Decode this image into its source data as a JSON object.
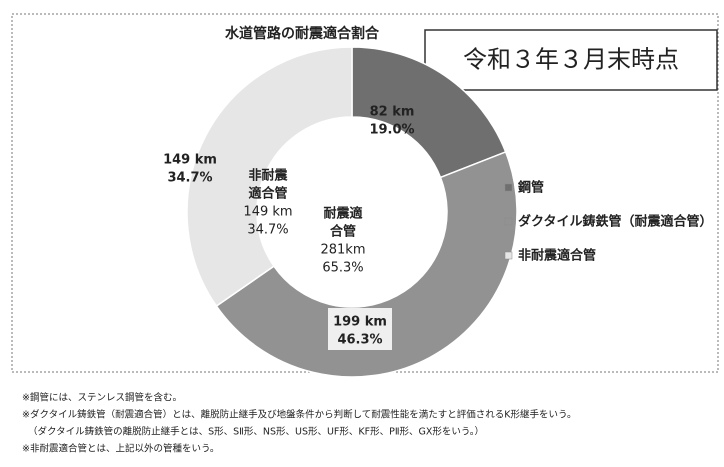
{
  "chart_data": {
    "type": "pie",
    "title": "水道管路の耐震適合割合",
    "date_label": "令和３年３月末時点",
    "categories": [
      "鋼管",
      "ダクタイル鋳鉄管（耐震適合管）",
      "非耐震適合管"
    ],
    "values": [
      82,
      199,
      149
    ],
    "value_labels": [
      "82 km",
      "199 km",
      "149 km"
    ],
    "percent_labels": [
      "19.0%",
      "46.3%",
      "34.7%"
    ],
    "colors": [
      "#6f6f6f",
      "#929292",
      "#e6e6e6"
    ],
    "annotations": [
      {
        "lines": [
          "非耐震",
          "適合管",
          "149 km",
          "34.7%"
        ]
      },
      {
        "lines": [
          "耐震適",
          "合管",
          "281km",
          "65.3%"
        ]
      }
    ],
    "notes": [
      "※鋼管には、ステンレス鋼管を含む。",
      "※ダクタイル鋳鉄管（耐震適合管）とは、離脱防止継手及び地盤条件から判断して耐震性能を満たすと評価されるK形継手をいう。",
      "（ダクタイル鋳鉄管の離脱防止継手とは、S形、SⅡ形、NS形、US形、UF形、KF形、PⅡ形、GX形をいう。）",
      "※非耐震適合管とは、上記以外の管種をいう。"
    ]
  }
}
